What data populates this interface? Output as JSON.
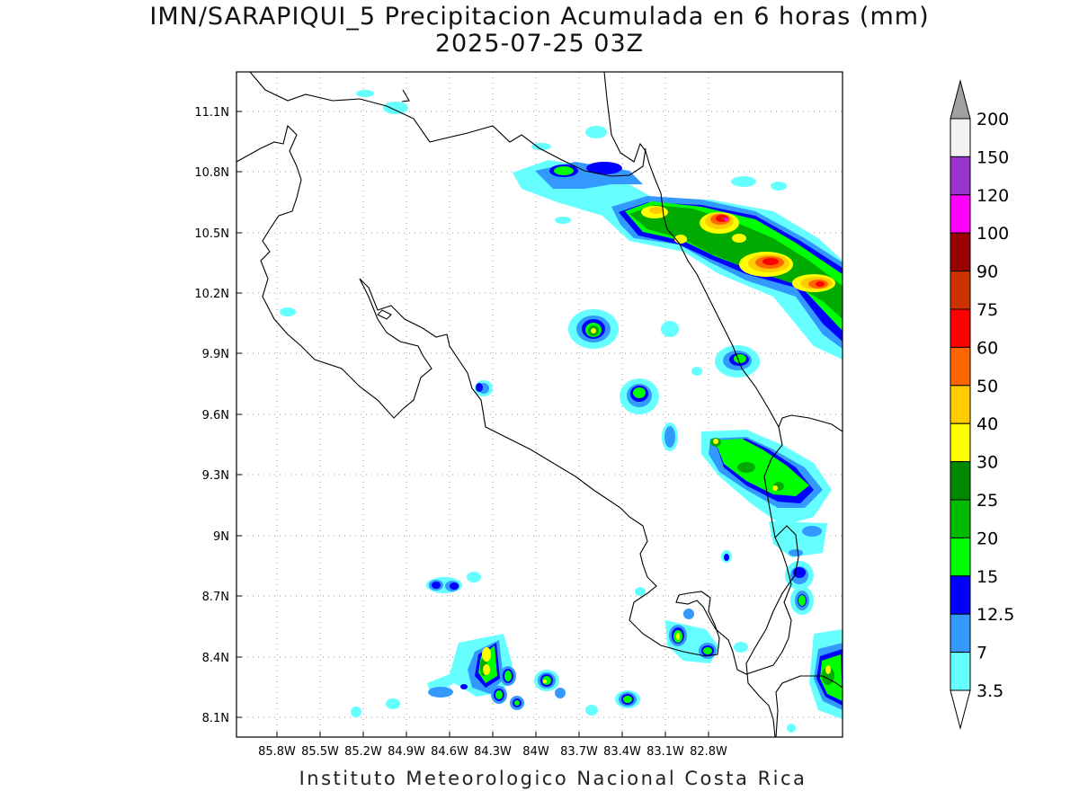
{
  "title_line1": "IMN/SARAPIQUI_5 Precipitacion Acumulada en 6 horas (mm)",
  "title_line2": "2025-07-25 03Z",
  "footer": "Instituto Meteorologico Nacional Costa Rica",
  "map": {
    "lon_range": [
      -85.97,
      -82.97
    ],
    "lat_range": [
      8.02,
      11.19
    ],
    "grid": true,
    "x_ticks": [
      "85.8W",
      "85.5W",
      "85.2W",
      "84.9W",
      "84.6W",
      "84.3W",
      "84W",
      "83.7W",
      "83.4W",
      "83.1W",
      "82.8W"
    ],
    "y_ticks": [
      "11.1N",
      "10.8N",
      "10.5N",
      "10.2N",
      "9.9N",
      "9.6N",
      "9.3N",
      "9N",
      "8.7N",
      "8.4N",
      "8.1N"
    ]
  },
  "colorbar": {
    "labels": [
      "200",
      "150",
      "120",
      "100",
      "90",
      "75",
      "60",
      "50",
      "40",
      "30",
      "25",
      "20",
      "15",
      "12.5",
      "7",
      "3.5"
    ],
    "colors": [
      "#a0a0a0",
      "#f2f2f2",
      "#9933cc",
      "#ff00ff",
      "#990000",
      "#cc3300",
      "#ff0000",
      "#ff6600",
      "#ffcc00",
      "#ffff00",
      "#008800",
      "#00bb00",
      "#00ff00",
      "#0000ff",
      "#3399ff",
      "#66ffff"
    ]
  }
}
